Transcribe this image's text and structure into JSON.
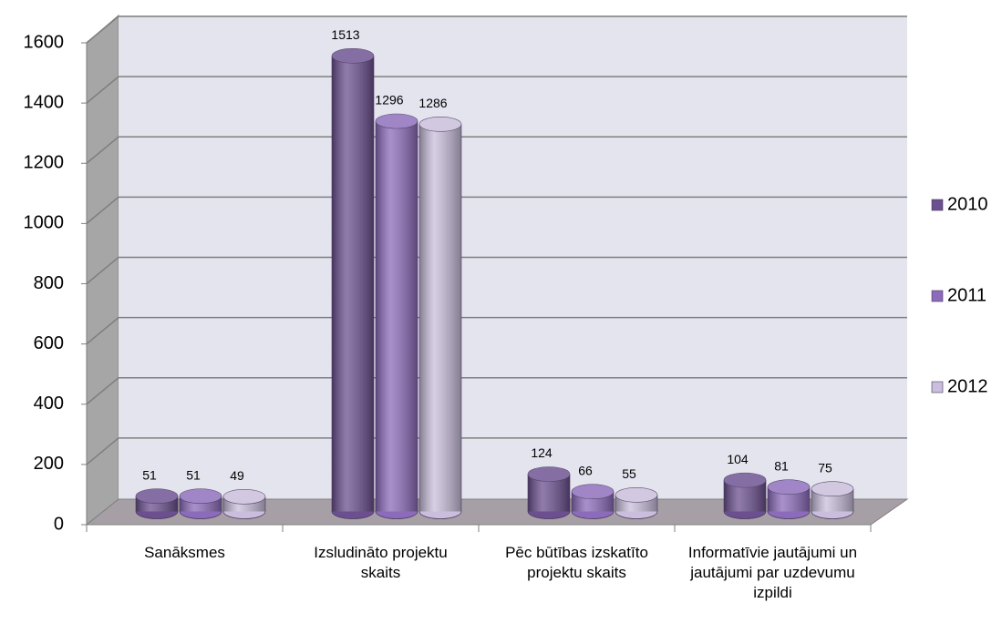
{
  "chart_data": {
    "type": "bar3d",
    "categories": [
      "Sanāksmes",
      "Izsludināto projektu skaits",
      "Pēc būtības izskatīto projektu skaits",
      "Informatīvie jautājumi un jautājumi par uzdevumu izpildi"
    ],
    "series": [
      {
        "name": "2010",
        "color": "#6b4f8f",
        "values": [
          51,
          1513,
          124,
          104
        ]
      },
      {
        "name": "2011",
        "color": "#8c6bbb",
        "values": [
          51,
          1296,
          66,
          81
        ]
      },
      {
        "name": "2012",
        "color": "#c9bedb",
        "values": [
          49,
          1286,
          55,
          75
        ]
      }
    ],
    "ylim": [
      0,
      1600
    ],
    "yticks": [
      0,
      200,
      400,
      600,
      800,
      1000,
      1200,
      1400,
      1600
    ],
    "grid": true,
    "legend": "right"
  }
}
